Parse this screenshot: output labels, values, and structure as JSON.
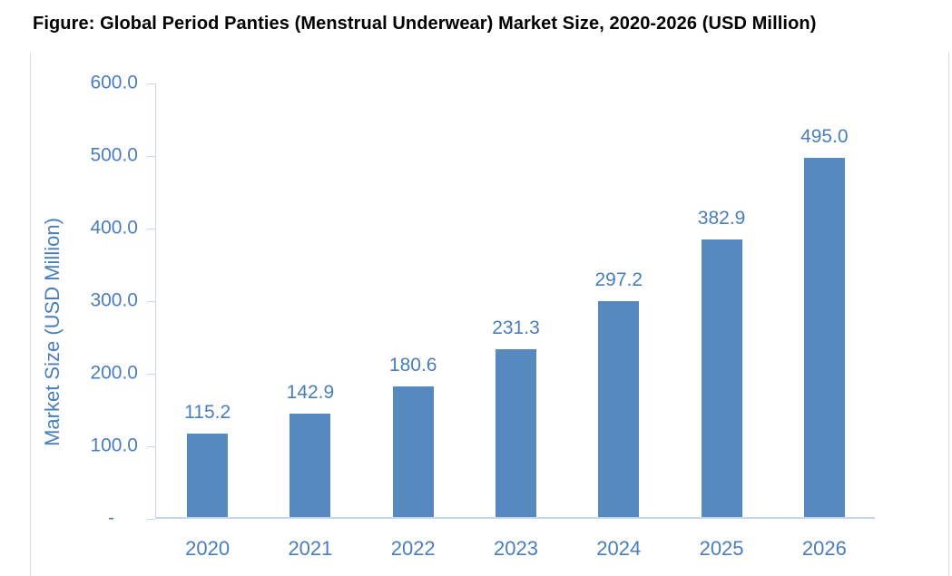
{
  "chart_data": {
    "type": "bar",
    "title": "Figure: Global Period Panties (Menstrual Underwear) Market Size, 2020-2026 (USD Million)",
    "categories": [
      "2020",
      "2021",
      "2022",
      "2023",
      "2024",
      "2025",
      "2026"
    ],
    "values": [
      115.2,
      142.9,
      180.6,
      231.3,
      297.2,
      382.9,
      495.0
    ],
    "data_labels": [
      "115.2",
      "142.9",
      "180.6",
      "231.3",
      "297.2",
      "382.9",
      "495.0"
    ],
    "xlabel": "",
    "ylabel": "Market Size (USD Million)",
    "ylim": [
      0,
      600
    ],
    "ytick_step": 100,
    "ytick_labels": [
      "600.0",
      "500.0",
      "400.0",
      "300.0",
      "200.0",
      "100.0",
      "-"
    ],
    "grid": false,
    "legend": false,
    "colors": {
      "bar": "#5689C0",
      "text": "#4A7EBB",
      "axis_line": "#C7D7EB",
      "figure_border": "#D9D9D9",
      "title_text": "#000000"
    }
  }
}
